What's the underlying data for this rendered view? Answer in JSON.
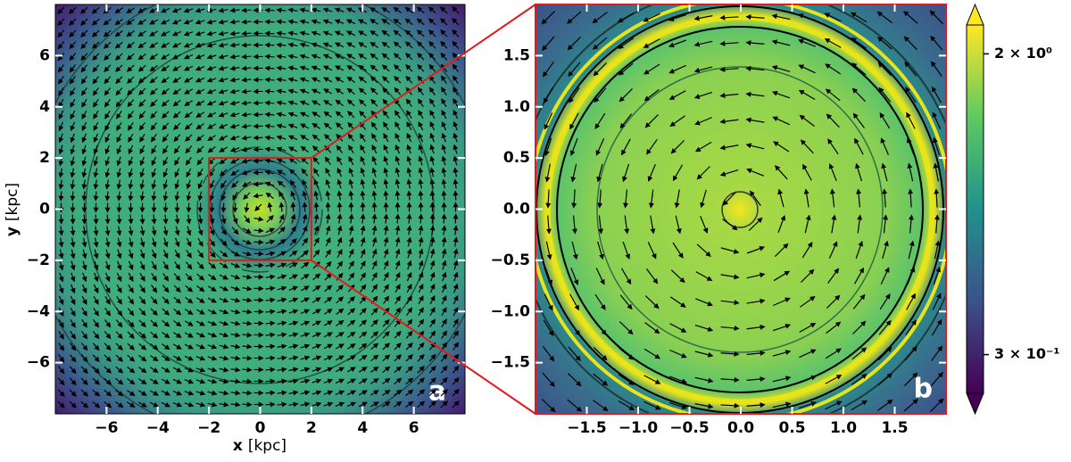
{
  "chart_data": [
    {
      "type": "heatmap",
      "panel_label": "a",
      "xlabel": {
        "symbol": "x",
        "unit": "[kpc]"
      },
      "ylabel": {
        "symbol": "y",
        "unit": "[kpc]"
      },
      "xlim": [
        -8,
        8
      ],
      "ylim": [
        -8,
        8
      ],
      "xticks": [
        {
          "value": -6,
          "label": "−6"
        },
        {
          "value": -4,
          "label": "−4"
        },
        {
          "value": -2,
          "label": "−2"
        },
        0,
        2,
        4,
        6
      ],
      "yticks": [
        {
          "value": -6,
          "label": "−6"
        },
        {
          "value": -4,
          "label": "−4"
        },
        {
          "value": -2,
          "label": "−2"
        },
        0,
        2,
        4,
        6
      ]
    },
    {
      "type": "heatmap",
      "panel_label": "b",
      "xlim": [
        -2,
        2
      ],
      "ylim": [
        -2,
        2
      ],
      "xticks": [
        {
          "value": -1.5,
          "label": "−1.5"
        },
        {
          "value": -1.0,
          "label": "−1.0"
        },
        {
          "value": -0.5,
          "label": "−0.5"
        },
        {
          "value": 0,
          "label": "0.0"
        },
        0.5,
        {
          "value": 1.0,
          "label": "1.0"
        },
        1.5
      ],
      "yticks": [
        {
          "value": -1.5,
          "label": "−1.5"
        },
        {
          "value": -1.0,
          "label": "−1.0"
        },
        {
          "value": -0.5,
          "label": "−0.5"
        },
        {
          "value": 0,
          "label": "0.0"
        },
        0.5,
        {
          "value": 1.0,
          "label": "1.0"
        },
        1.5
      ]
    },
    {
      "type": "colorbar",
      "colormap": "viridis",
      "scale": "log",
      "extend": "both",
      "clim": [
        0.235,
        2.4
      ],
      "ticks": [
        {
          "value": 2,
          "label": "2 × 10⁰"
        },
        {
          "value": 0.3,
          "label": "3 × 10⁻¹"
        }
      ]
    }
  ]
}
